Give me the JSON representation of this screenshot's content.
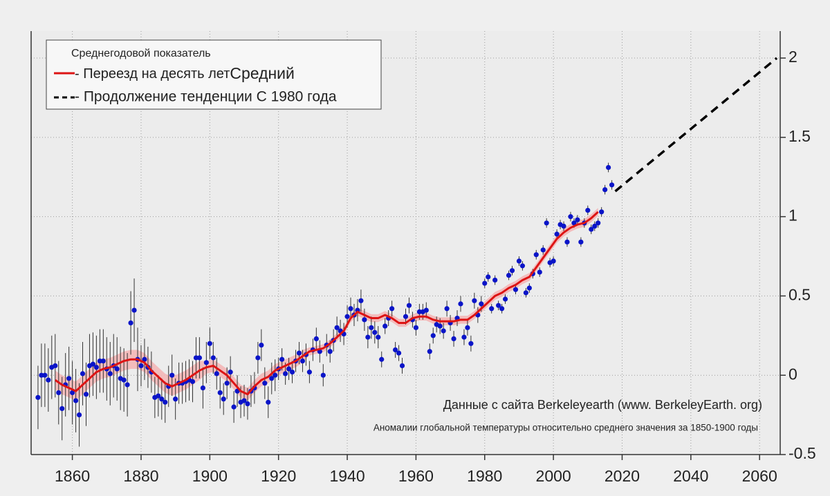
{
  "chart_data": {
    "type": "scatter",
    "legend_title": "Среднегодовой показатель",
    "annotations": [
      "Данные с сайта Berkeleyearth (www. BerkeleyEarth. org)",
      "Аномалии глобальной температуры относительно среднего значения за 1850-1900 годы"
    ],
    "xlim": [
      1848,
      2066
    ],
    "ylim": [
      -0.5,
      2.17
    ],
    "xticks": [
      1860,
      1880,
      1900,
      1920,
      1940,
      1960,
      1980,
      2000,
      2020,
      2040,
      2060
    ],
    "yticks": [
      -0.5,
      0,
      0.5,
      1,
      1.5,
      2
    ],
    "grid": true,
    "series": [
      {
        "color": "#0a14c8",
        "x": [
          1850,
          1851,
          1852,
          1853,
          1854,
          1855,
          1856,
          1857,
          1858,
          1859,
          1860,
          1861,
          1862,
          1863,
          1864,
          1865,
          1866,
          1867,
          1868,
          1869,
          1870,
          1871,
          1872,
          1873,
          1874,
          1875,
          1876,
          1877,
          1878,
          1879,
          1880,
          1881,
          1882,
          1883,
          1884,
          1885,
          1886,
          1887,
          1888,
          1889,
          1890,
          1891,
          1892,
          1893,
          1894,
          1895,
          1896,
          1897,
          1898,
          1899,
          1900,
          1901,
          1902,
          1903,
          1904,
          1905,
          1906,
          1907,
          1908,
          1909,
          1910,
          1911,
          1912,
          1913,
          1914,
          1915,
          1916,
          1917,
          1918,
          1919,
          1920,
          1921,
          1922,
          1923,
          1924,
          1925,
          1926,
          1927,
          1928,
          1929,
          1930,
          1931,
          1932,
          1933,
          1934,
          1935,
          1936,
          1937,
          1938,
          1939,
          1940,
          1941,
          1942,
          1943,
          1944,
          1945,
          1946,
          1947,
          1948,
          1949,
          1950,
          1951,
          1952,
          1953,
          1954,
          1955,
          1956,
          1957,
          1958,
          1959,
          1960,
          1961,
          1962,
          1963,
          1964,
          1965,
          1966,
          1967,
          1968,
          1969,
          1970,
          1971,
          1972,
          1973,
          1974,
          1975,
          1976,
          1977,
          1978,
          1979,
          1980,
          1981,
          1982,
          1983,
          1984,
          1985,
          1986,
          1987,
          1988,
          1989,
          1990,
          1991,
          1992,
          1993,
          1994,
          1995,
          1996,
          1997,
          1998,
          1999,
          2000,
          2001,
          2002,
          2003,
          2004,
          2005,
          2006,
          2007,
          2008,
          2009,
          2010,
          2011,
          2012,
          2013,
          2014,
          2015,
          2016,
          2017
        ],
        "values": [
          -0.14,
          0.0,
          0.0,
          -0.03,
          0.05,
          0.06,
          -0.11,
          -0.21,
          -0.06,
          -0.02,
          -0.11,
          -0.16,
          -0.25,
          0.01,
          -0.12,
          0.06,
          0.07,
          0.05,
          0.09,
          0.09,
          0.04,
          0.01,
          0.06,
          0.04,
          -0.02,
          -0.03,
          -0.06,
          0.33,
          0.41,
          0.1,
          0.06,
          0.1,
          0.05,
          0.02,
          -0.14,
          -0.13,
          -0.15,
          -0.17,
          -0.07,
          0.0,
          -0.15,
          -0.05,
          -0.05,
          -0.04,
          -0.03,
          -0.04,
          0.11,
          0.11,
          -0.08,
          0.08,
          0.2,
          0.11,
          0.01,
          -0.11,
          -0.15,
          -0.05,
          0.02,
          -0.2,
          -0.1,
          -0.17,
          -0.16,
          -0.18,
          -0.1,
          -0.08,
          0.11,
          0.19,
          -0.05,
          -0.17,
          -0.02,
          0.0,
          0.04,
          0.1,
          0.01,
          0.04,
          0.02,
          0.09,
          0.14,
          0.09,
          0.13,
          0.02,
          0.16,
          0.23,
          0.15,
          0.0,
          0.19,
          0.15,
          0.22,
          0.3,
          0.28,
          0.26,
          0.37,
          0.42,
          0.38,
          0.41,
          0.47,
          0.35,
          0.24,
          0.3,
          0.27,
          0.24,
          0.1,
          0.31,
          0.36,
          0.42,
          0.16,
          0.14,
          0.06,
          0.37,
          0.44,
          0.35,
          0.3,
          0.4,
          0.4,
          0.41,
          0.15,
          0.25,
          0.32,
          0.31,
          0.28,
          0.42,
          0.33,
          0.23,
          0.36,
          0.45,
          0.24,
          0.3,
          0.2,
          0.47,
          0.38,
          0.45,
          0.58,
          0.62,
          0.42,
          0.6,
          0.44,
          0.42,
          0.48,
          0.63,
          0.66,
          0.54,
          0.72,
          0.69,
          0.52,
          0.55,
          0.64,
          0.76,
          0.65,
          0.79,
          0.96,
          0.71,
          0.72,
          0.89,
          0.95,
          0.94,
          0.84,
          1.0,
          0.96,
          0.98,
          0.84,
          0.96,
          1.04,
          0.92,
          0.94,
          0.96,
          1.03,
          1.17,
          1.31,
          1.2
        ],
        "errors": [
          0.2,
          0.2,
          0.2,
          0.2,
          0.2,
          0.2,
          0.2,
          0.2,
          0.2,
          0.2,
          0.2,
          0.2,
          0.2,
          0.2,
          0.2,
          0.2,
          0.2,
          0.2,
          0.2,
          0.2,
          0.2,
          0.2,
          0.2,
          0.2,
          0.2,
          0.2,
          0.2,
          0.2,
          0.2,
          0.2,
          0.13,
          0.13,
          0.13,
          0.13,
          0.13,
          0.13,
          0.13,
          0.13,
          0.13,
          0.13,
          0.13,
          0.13,
          0.13,
          0.13,
          0.13,
          0.13,
          0.13,
          0.13,
          0.13,
          0.13,
          0.1,
          0.1,
          0.1,
          0.1,
          0.1,
          0.1,
          0.1,
          0.1,
          0.1,
          0.1,
          0.1,
          0.1,
          0.1,
          0.1,
          0.1,
          0.1,
          0.1,
          0.1,
          0.1,
          0.1,
          0.07,
          0.07,
          0.07,
          0.07,
          0.07,
          0.07,
          0.07,
          0.07,
          0.07,
          0.07,
          0.07,
          0.07,
          0.07,
          0.07,
          0.07,
          0.07,
          0.07,
          0.07,
          0.07,
          0.07,
          0.07,
          0.07,
          0.07,
          0.07,
          0.07,
          0.07,
          0.07,
          0.07,
          0.07,
          0.07,
          0.05,
          0.05,
          0.05,
          0.05,
          0.05,
          0.05,
          0.05,
          0.05,
          0.05,
          0.05,
          0.05,
          0.05,
          0.05,
          0.05,
          0.05,
          0.05,
          0.05,
          0.05,
          0.05,
          0.05,
          0.05,
          0.05,
          0.05,
          0.05,
          0.05,
          0.05,
          0.05,
          0.05,
          0.05,
          0.05,
          0.03,
          0.03,
          0.03,
          0.03,
          0.03,
          0.03,
          0.03,
          0.03,
          0.03,
          0.03,
          0.03,
          0.03,
          0.03,
          0.03,
          0.03,
          0.03,
          0.03,
          0.03,
          0.03,
          0.03,
          0.03,
          0.03,
          0.03,
          0.03,
          0.03,
          0.03,
          0.03,
          0.03,
          0.03,
          0.03,
          0.03,
          0.03,
          0.03,
          0.03,
          0.03,
          0.03,
          0.03,
          0.03
        ]
      },
      {
        "name": "- Переезд на десять лет",
        "name_suffix": "Средний",
        "type": "line",
        "color": "#dd1414",
        "band_color": "#f5b4b4",
        "x": [
          1855,
          1857,
          1859,
          1861,
          1863,
          1865,
          1867,
          1869,
          1871,
          1873,
          1875,
          1877,
          1879,
          1881,
          1883,
          1885,
          1887,
          1889,
          1891,
          1893,
          1895,
          1897,
          1899,
          1901,
          1903,
          1905,
          1907,
          1909,
          1911,
          1913,
          1915,
          1917,
          1919,
          1921,
          1923,
          1925,
          1927,
          1929,
          1931,
          1933,
          1935,
          1937,
          1939,
          1941,
          1943,
          1945,
          1947,
          1949,
          1951,
          1953,
          1955,
          1957,
          1959,
          1961,
          1963,
          1965,
          1967,
          1969,
          1971,
          1973,
          1975,
          1977,
          1979,
          1981,
          1983,
          1985,
          1987,
          1989,
          1991,
          1993,
          1995,
          1997,
          1999,
          2001,
          2003,
          2005,
          2007,
          2009,
          2011,
          2013
        ],
        "values": [
          -0.03,
          -0.06,
          -0.08,
          -0.1,
          -0.06,
          -0.02,
          0.02,
          0.04,
          0.05,
          0.07,
          0.09,
          0.1,
          0.1,
          0.08,
          0.03,
          -0.01,
          -0.05,
          -0.07,
          -0.05,
          -0.03,
          0.0,
          0.03,
          0.05,
          0.06,
          0.03,
          0.0,
          -0.05,
          -0.1,
          -0.12,
          -0.07,
          -0.03,
          -0.01,
          0.03,
          0.05,
          0.07,
          0.09,
          0.12,
          0.15,
          0.16,
          0.17,
          0.2,
          0.24,
          0.28,
          0.36,
          0.4,
          0.38,
          0.36,
          0.36,
          0.38,
          0.36,
          0.33,
          0.33,
          0.36,
          0.37,
          0.37,
          0.35,
          0.34,
          0.34,
          0.34,
          0.35,
          0.35,
          0.38,
          0.42,
          0.46,
          0.5,
          0.52,
          0.55,
          0.57,
          0.6,
          0.62,
          0.68,
          0.74,
          0.8,
          0.86,
          0.9,
          0.93,
          0.95,
          0.96,
          0.99,
          1.03
        ],
        "band": [
          0.06,
          0.06,
          0.06,
          0.06,
          0.06,
          0.06,
          0.06,
          0.06,
          0.06,
          0.06,
          0.06,
          0.06,
          0.06,
          0.06,
          0.06,
          0.06,
          0.06,
          0.06,
          0.06,
          0.06,
          0.06,
          0.06,
          0.04,
          0.04,
          0.04,
          0.04,
          0.04,
          0.04,
          0.04,
          0.04,
          0.04,
          0.04,
          0.04,
          0.04,
          0.04,
          0.04,
          0.04,
          0.025,
          0.025,
          0.025,
          0.025,
          0.025,
          0.025,
          0.025,
          0.025,
          0.025,
          0.025,
          0.025,
          0.025,
          0.025,
          0.025,
          0.025,
          0.025,
          0.025,
          0.025,
          0.025,
          0.025,
          0.025,
          0.025,
          0.025,
          0.025,
          0.025,
          0.025,
          0.025,
          0.025,
          0.025,
          0.025,
          0.025,
          0.025,
          0.025,
          0.025,
          0.025,
          0.025,
          0.025,
          0.025,
          0.025,
          0.025,
          0.025,
          0.025,
          0.025
        ]
      },
      {
        "name": "- Продолжение тенденции С 1980 года",
        "type": "dashed",
        "color": "#000000",
        "x": [
          2018,
          2065
        ],
        "values": [
          1.16,
          2.0
        ]
      }
    ]
  }
}
